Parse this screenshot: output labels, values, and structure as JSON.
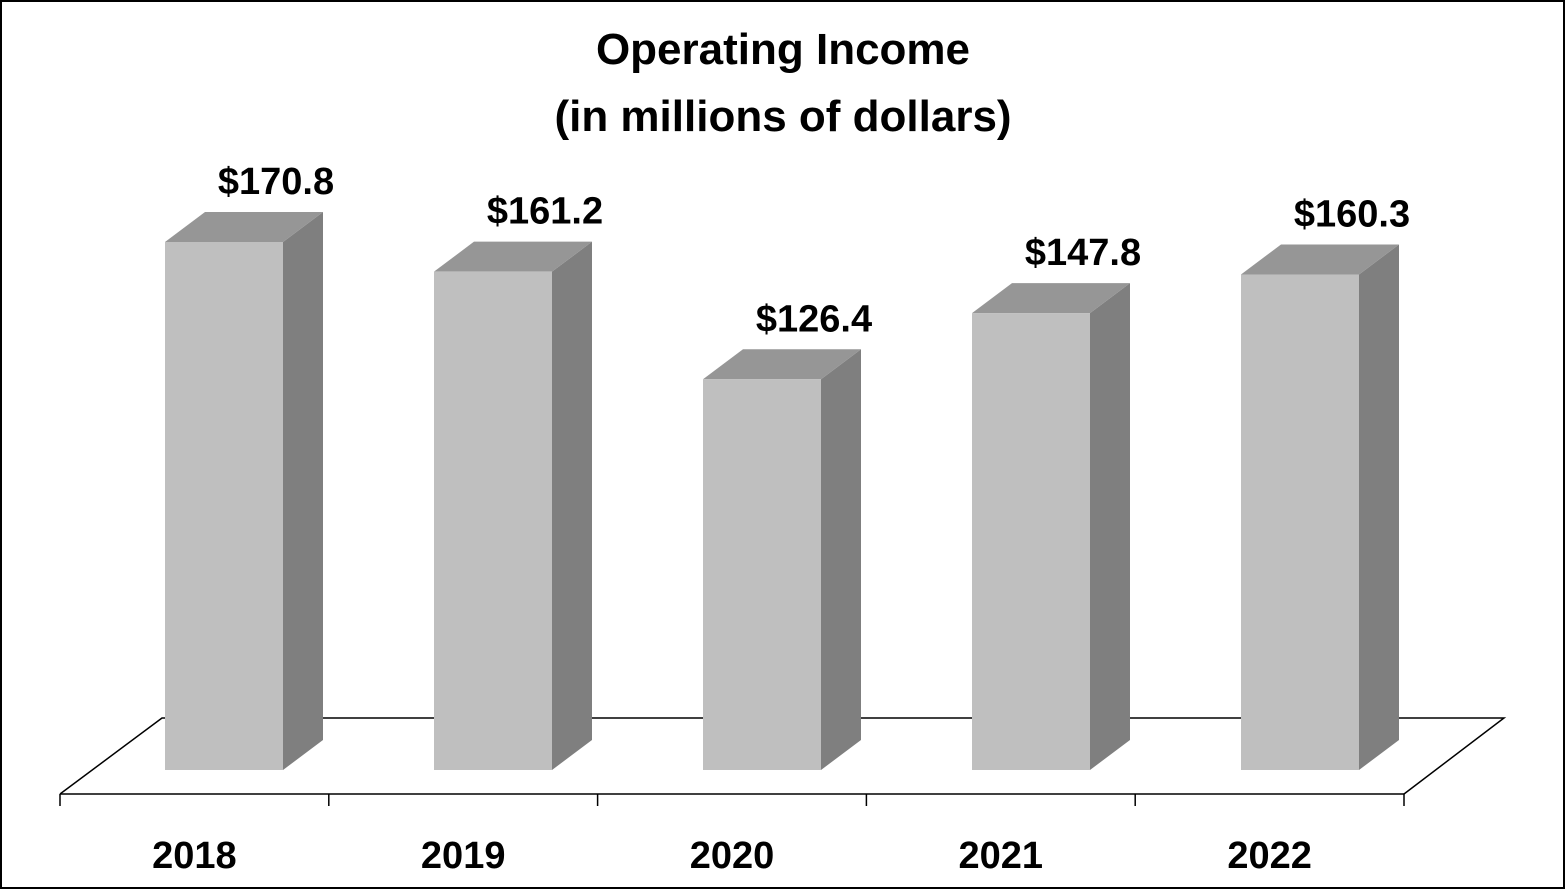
{
  "chart_data": {
    "type": "bar",
    "title": "Operating Income",
    "subtitle": "(in millions of dollars)",
    "categories": [
      "2018",
      "2019",
      "2020",
      "2021",
      "2022"
    ],
    "values": [
      170.8,
      161.2,
      126.4,
      147.8,
      160.3
    ],
    "data_labels": [
      "$170.8",
      "$161.2",
      "$126.4",
      "$147.8",
      "$160.3"
    ],
    "xlabel": "",
    "ylabel": "",
    "ylim": [
      0,
      170.8
    ],
    "grid": false,
    "legend": "none",
    "style": "3d",
    "colors": {
      "front": "#bfbfbf",
      "top": "#969696",
      "side": "#7f7f7f",
      "floor_line": "#000000"
    }
  }
}
